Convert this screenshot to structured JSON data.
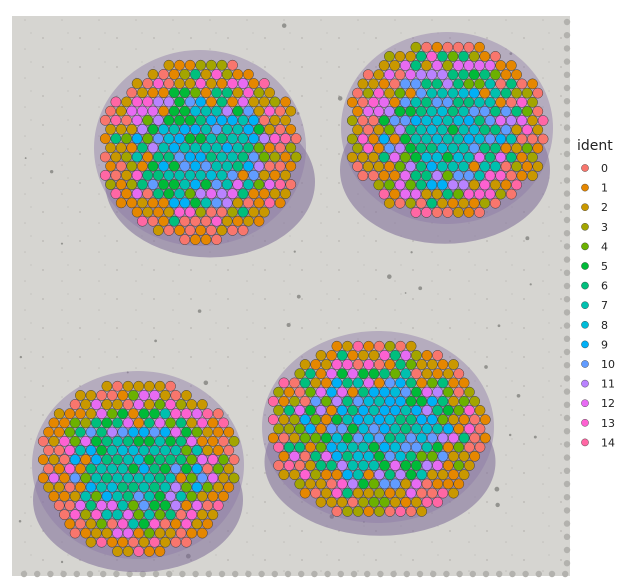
{
  "chart_data": {
    "type": "scatter",
    "title": "",
    "xlabel": "",
    "ylabel": "",
    "grid": false,
    "legend": {
      "title": "ident",
      "placement": "right",
      "entries": [
        {
          "label": "0",
          "color": "#F8766D"
        },
        {
          "label": "1",
          "color": "#E58700"
        },
        {
          "label": "2",
          "color": "#C99800"
        },
        {
          "label": "3",
          "color": "#A3A500"
        },
        {
          "label": "4",
          "color": "#6BB100"
        },
        {
          "label": "5",
          "color": "#00BA38"
        },
        {
          "label": "6",
          "color": "#00BF7D"
        },
        {
          "label": "7",
          "color": "#00C0AF"
        },
        {
          "label": "8",
          "color": "#00BCD8"
        },
        {
          "label": "9",
          "color": "#00B0F6"
        },
        {
          "label": "10",
          "color": "#619CFF"
        },
        {
          "label": "11",
          "color": "#B983FF"
        },
        {
          "label": "12",
          "color": "#E76BF3"
        },
        {
          "label": "13",
          "color": "#FD61D1"
        },
        {
          "label": "14",
          "color": "#FF67A4"
        }
      ]
    },
    "background": "tissue-histology-image",
    "sections": [
      {
        "name": "top-left"
      },
      {
        "name": "top-right"
      },
      {
        "name": "bottom-left"
      },
      {
        "name": "bottom-right"
      }
    ]
  }
}
